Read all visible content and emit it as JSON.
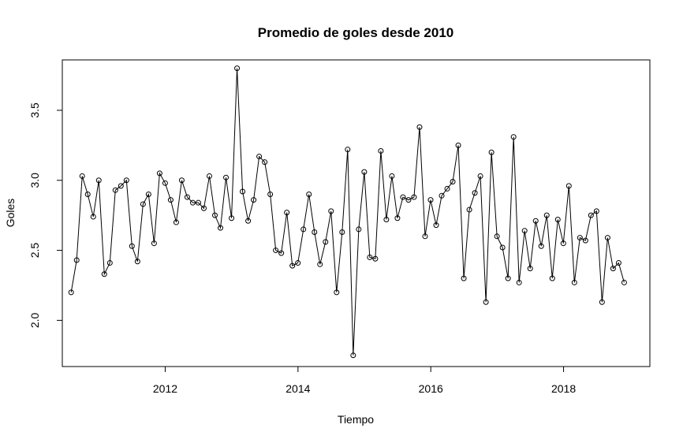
{
  "chart_data": {
    "type": "line",
    "title": "Promedio de goles desde 2010",
    "xlabel": "Tiempo",
    "ylabel": "Goles",
    "xlim": [
      2010.45,
      2019.3
    ],
    "ylim": [
      1.67,
      3.86
    ],
    "x_ticks": [
      2012,
      2014,
      2016,
      2018
    ],
    "y_ticks": [
      2.0,
      2.5,
      3.0,
      3.5
    ],
    "x_tick_labels": [
      "2012",
      "2014",
      "2016",
      "2018"
    ],
    "y_tick_labels": [
      "2.0",
      "2.5",
      "3.0",
      "3.5"
    ],
    "grid": false,
    "series": [
      {
        "x_start": 2010.583,
        "x_step": 0.0833,
        "values": [
          2.2,
          2.43,
          3.03,
          2.9,
          2.74,
          3.0,
          2.33,
          2.41,
          2.93,
          2.96,
          3.0,
          2.53,
          2.42,
          2.83,
          2.9,
          2.55,
          3.05,
          2.98,
          2.86,
          2.7,
          3.0,
          2.88,
          2.84,
          2.84,
          2.8,
          3.03,
          2.75,
          2.66,
          3.02,
          2.73,
          3.8,
          2.92,
          2.71,
          2.86,
          3.17,
          3.13,
          2.9,
          2.5,
          2.48,
          2.77,
          2.39,
          2.41,
          2.65,
          2.9,
          2.63,
          2.4,
          2.56,
          2.78,
          2.2,
          2.63,
          3.22,
          1.75,
          2.65,
          3.06,
          2.45,
          2.44,
          3.21,
          2.72,
          3.03,
          2.73,
          2.88,
          2.86,
          2.88,
          3.38,
          2.6,
          2.86,
          2.68,
          2.89,
          2.94,
          2.99,
          3.25,
          2.3,
          2.79,
          2.91,
          3.03,
          2.13,
          3.2,
          2.6,
          2.52,
          2.3,
          3.31,
          2.27,
          2.64,
          2.37,
          2.71,
          2.53,
          2.75,
          2.3,
          2.72,
          2.55,
          2.96,
          2.27,
          2.59,
          2.57,
          2.75,
          2.78,
          2.13,
          2.59,
          2.37,
          2.41,
          2.27
        ]
      }
    ]
  }
}
